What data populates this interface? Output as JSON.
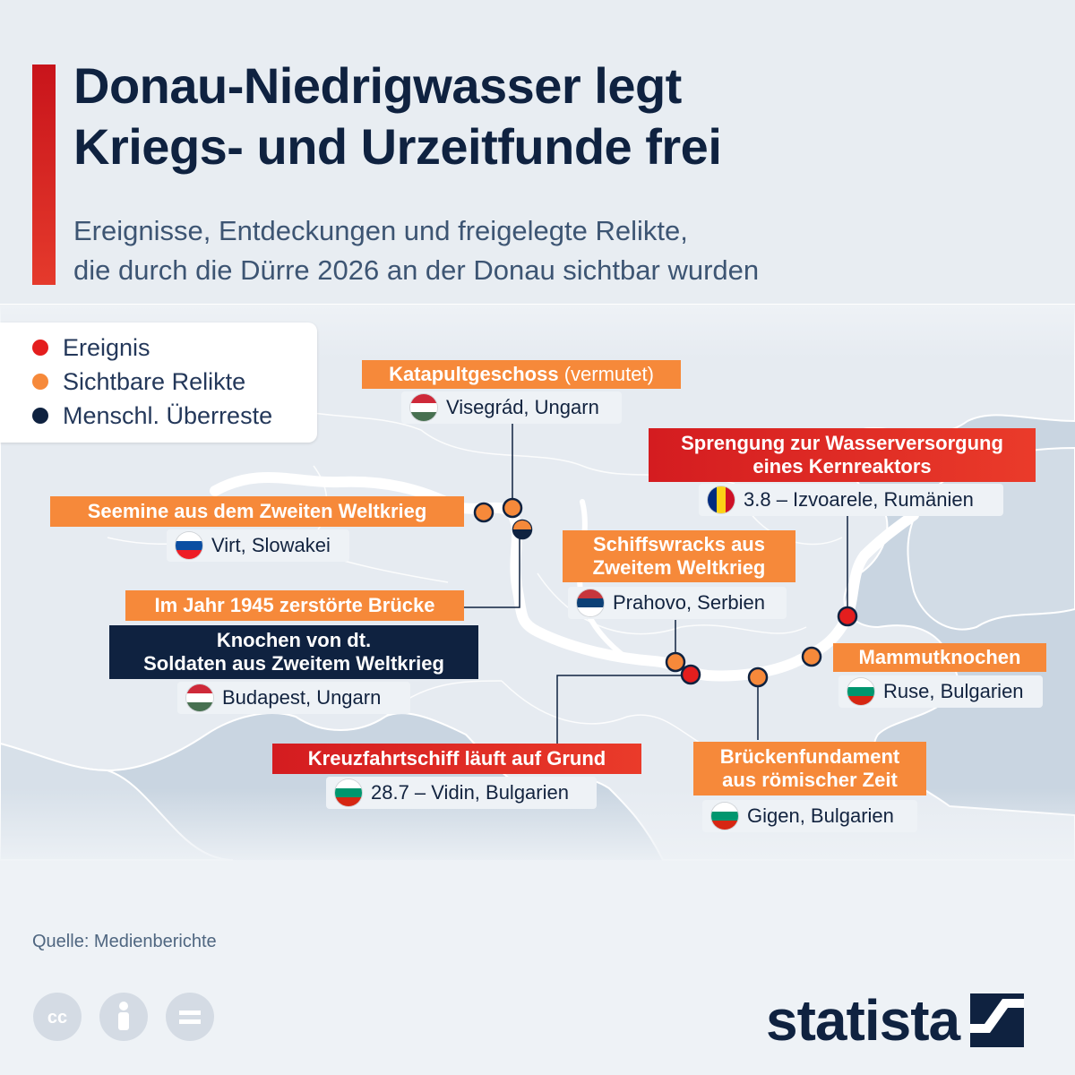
{
  "header": {
    "title_line1": "Donau-Niedrigwasser legt",
    "title_line2": "Kriegs- und Urzeitfunde frei",
    "subtitle_line1": "Ereignisse, Entdeckungen und freigelegte Relikte,",
    "subtitle_line2": "die durch die Dürre 2026 an der Donau sichtbar wurden"
  },
  "legend": {
    "items": [
      {
        "label": "Ereignis",
        "color": "#e41e1e"
      },
      {
        "label": "Sichtbare Relikte",
        "color": "#f6893a"
      },
      {
        "label": "Menschl. Überreste",
        "color": "#0f2240"
      }
    ]
  },
  "markers": [
    {
      "title": "Katapultgeschoss",
      "title_note": "(vermutet)",
      "type": "Sichtbare Relikte",
      "location": "Visegrád, Ungarn",
      "flag": "hungary"
    },
    {
      "title": "Seemine aus dem Zweiten Weltkrieg",
      "type": "Sichtbare Relikte",
      "location": "Virt, Slowakei",
      "flag": "slovakia"
    },
    {
      "title": "Im Jahr 1945 zerstörte Brücke",
      "type": "Sichtbare Relikte",
      "location": "",
      "flag": ""
    },
    {
      "title_line1": "Knochen von dt.",
      "title_line2": "Soldaten aus Zweitem Weltkrieg",
      "type": "Menschl. Überreste",
      "location": "Budapest, Ungarn",
      "flag": "hungary"
    },
    {
      "title_line1": "Sprengung zur Wasserversorgung",
      "title_line2": "eines Kernreaktors",
      "type": "Ereignis",
      "location": "3.8 – Izvoarele, Rumänien",
      "flag": "romania"
    },
    {
      "title_line1": "Schiffswracks aus",
      "title_line2": "Zweitem Weltkrieg",
      "type": "Sichtbare Relikte",
      "location": "Prahovo, Serbien",
      "flag": "serbia"
    },
    {
      "title": "Mammutknochen",
      "type": "Sichtbare Relikte",
      "location": "Ruse, Bulgarien",
      "flag": "bulgaria"
    },
    {
      "title": "Kreuzfahrtschiff läuft auf Grund",
      "type": "Ereignis",
      "location": "28.7 – Vidin, Bulgarien",
      "flag": "bulgaria"
    },
    {
      "title_line1": "Brückenfundament",
      "title_line2": "aus römischer Zeit",
      "type": "Sichtbare Relikte",
      "location": "Gigen, Bulgarien",
      "flag": "bulgaria"
    }
  ],
  "footer": {
    "source": "Quelle: Medienberichte",
    "brand": "statista",
    "license_icons": [
      "cc-icon",
      "attribution-icon",
      "no-derivatives-icon"
    ]
  },
  "colors": {
    "accent": "#e41e1e",
    "navy": "#0f2240",
    "orange": "#f6893a",
    "sea": "#c7d3e0",
    "land": "#e9eef3"
  }
}
